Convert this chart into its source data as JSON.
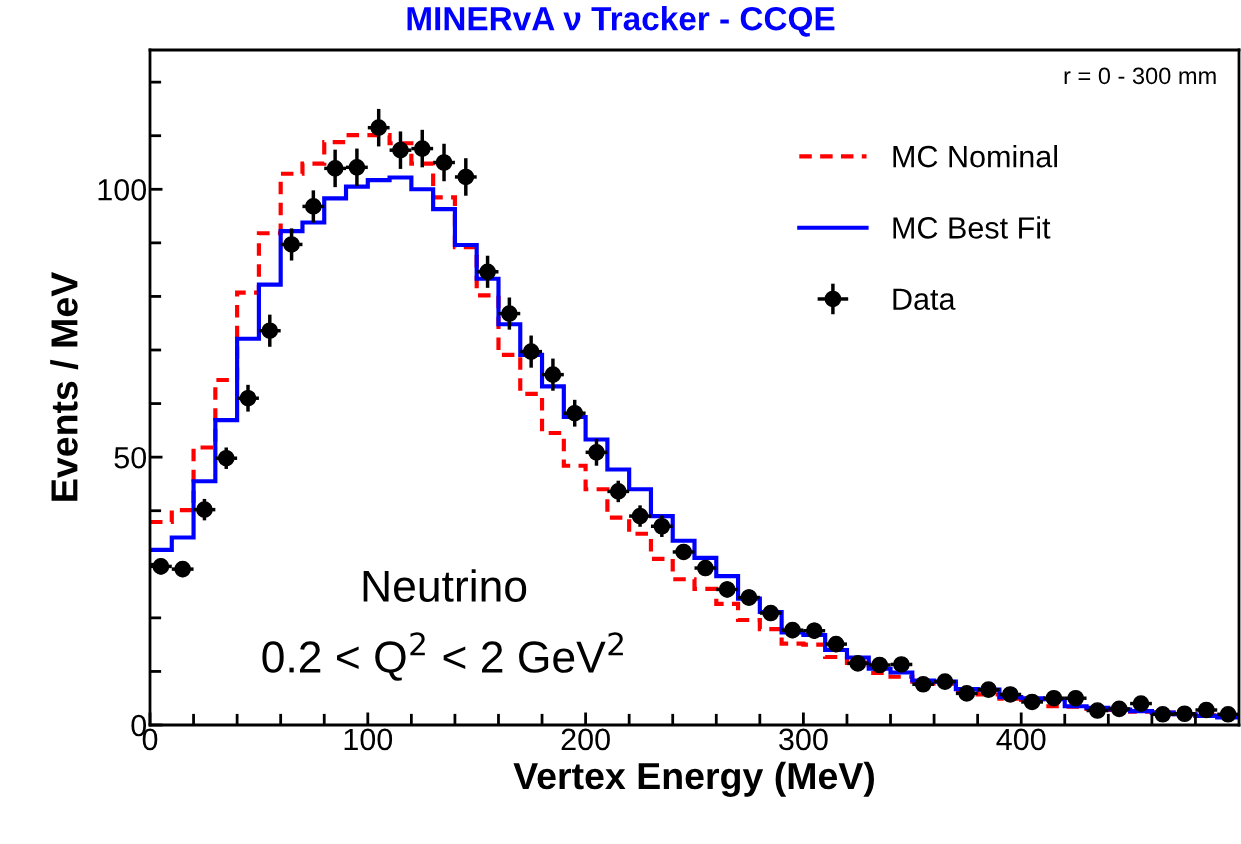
{
  "chart_data": {
    "type": "histogram",
    "title": "MINERvA ν Tracker - CCQE",
    "xlabel": "Vertex Energy (MeV)",
    "ylabel": "Events / MeV",
    "annotations": [
      "r = 0 - 300 mm",
      "Neutrino",
      "0.2 < Q$^{2}$ < 2 GeV$^{2}$"
    ],
    "bins": [
      0,
      10,
      20,
      30,
      40,
      50,
      60,
      70,
      80,
      90,
      100,
      110,
      120,
      130,
      140,
      150,
      160,
      170,
      180,
      190,
      200,
      210,
      220,
      230,
      240,
      250,
      260,
      270,
      280,
      290,
      300,
      310,
      320,
      330,
      340,
      350,
      360,
      370,
      380,
      390,
      400,
      410,
      420,
      430,
      440,
      450,
      460,
      470,
      480,
      490,
      500
    ],
    "series": [
      {
        "name": "MC Nominal",
        "color": "#ff0000",
        "line_style": "dashed",
        "values": [
          37.9,
          40.1,
          51.8,
          64.4,
          80.7,
          91.8,
          102.9,
          104.8,
          108.8,
          110.1,
          110.1,
          108.6,
          104.8,
          98.5,
          89.2,
          80.2,
          69.1,
          61.8,
          54.5,
          48.4,
          44.0,
          38.7,
          35.7,
          31.0,
          27.2,
          25.4,
          22.6,
          19.6,
          17.9,
          15.2,
          15.0,
          12.7,
          11.6,
          9.7,
          9.0,
          8.1,
          7.7,
          6.1,
          5.7,
          4.9,
          4.7,
          3.5,
          3.4,
          3.0,
          2.8,
          2.5,
          2.3,
          2.0,
          1.8,
          1.6
        ]
      },
      {
        "name": "MC Best Fit",
        "color": "#0000ff",
        "line_style": "solid",
        "values": [
          32.7,
          35.0,
          45.5,
          56.9,
          72.1,
          82.2,
          92.2,
          93.8,
          98.3,
          100.5,
          101.7,
          102.2,
          100.0,
          96.3,
          89.6,
          83.3,
          74.8,
          69.1,
          63.2,
          57.5,
          53.3,
          47.7,
          44.0,
          39.0,
          34.4,
          31.2,
          27.8,
          23.6,
          21.1,
          17.3,
          16.8,
          14.0,
          12.6,
          10.5,
          9.8,
          8.3,
          8.1,
          6.7,
          6.6,
          5.2,
          5.0,
          4.8,
          3.5,
          3.2,
          2.9,
          2.6,
          2.3,
          2.0,
          1.7,
          1.4
        ]
      },
      {
        "name": "Data",
        "type": "scatter",
        "color": "#000000",
        "marker": "circle",
        "x": [
          5,
          15,
          25,
          35,
          45,
          55,
          65,
          75,
          85,
          95,
          105,
          115,
          125,
          135,
          145,
          155,
          165,
          175,
          185,
          195,
          205,
          215,
          225,
          235,
          245,
          255,
          265,
          275,
          285,
          295,
          305,
          315,
          325,
          335,
          345,
          355,
          365,
          375,
          385,
          395,
          405,
          415,
          425,
          435,
          445,
          455,
          465,
          475,
          485,
          495
        ],
        "values": [
          29.6,
          29.1,
          40.2,
          49.8,
          61.0,
          73.6,
          89.7,
          96.8,
          103.9,
          104.1,
          111.5,
          107.3,
          107.6,
          105.0,
          102.3,
          84.6,
          76.8,
          69.7,
          65.4,
          58.2,
          50.9,
          43.6,
          39.0,
          37.1,
          32.3,
          29.3,
          25.3,
          23.8,
          20.9,
          17.7,
          17.6,
          15.1,
          11.5,
          11.2,
          11.3,
          7.6,
          8.1,
          5.9,
          6.6,
          5.7,
          4.3,
          5.0,
          5.0,
          2.7,
          3.0,
          4.0,
          2.0,
          2.1,
          2.8,
          2.0
        ],
        "errors": [
          1.5,
          1.5,
          2,
          2,
          2.5,
          3,
          3,
          3,
          3.5,
          3.5,
          3.5,
          3.5,
          3.5,
          3.5,
          3.5,
          3,
          3,
          3,
          3,
          2.5,
          2.5,
          2,
          2,
          2,
          1.5,
          1.5,
          1.5,
          1.5,
          1.5,
          1.5,
          1.5,
          1.5,
          1,
          1,
          1,
          1,
          1,
          1,
          1,
          1,
          1,
          1,
          1,
          0.5,
          0.5,
          0.5,
          0.5,
          0.5,
          0.5,
          0.5
        ],
        "xerrors": [
          5,
          5,
          5,
          5,
          5,
          5,
          5,
          5,
          5,
          5,
          5,
          5,
          5,
          5,
          5,
          5,
          5,
          5,
          5,
          5,
          5,
          5,
          5,
          5,
          5,
          5,
          5,
          5,
          5,
          5,
          5,
          5,
          5,
          5,
          5,
          5,
          5,
          5,
          5,
          5,
          5,
          5,
          5,
          5,
          5,
          5,
          5,
          5,
          5,
          5
        ]
      }
    ],
    "xlim": [
      0,
      500
    ],
    "ylim": [
      0,
      126
    ],
    "xticks": [
      0,
      {
        "value": 20,
        "label": null
      },
      {
        "value": 40,
        "label": null
      },
      {
        "value": 60,
        "label": null
      },
      {
        "value": 80,
        "label": null
      },
      100,
      {
        "value": 120,
        "label": null
      },
      {
        "value": 140,
        "label": null
      },
      {
        "value": 160,
        "label": null
      },
      {
        "value": 180,
        "label": null
      },
      200,
      {
        "value": 220,
        "label": null
      },
      {
        "value": 240,
        "label": null
      },
      {
        "value": 260,
        "label": null
      },
      {
        "value": 280,
        "label": null
      },
      300,
      {
        "value": 320,
        "label": null
      },
      {
        "value": 340,
        "label": null
      },
      {
        "value": 360,
        "label": null
      },
      {
        "value": 380,
        "label": null
      },
      400,
      {
        "value": 420,
        "label": null
      },
      {
        "value": 440,
        "label": null
      },
      {
        "value": 460,
        "label": null
      },
      {
        "value": 480,
        "label": null
      }
    ],
    "yticks": [
      0,
      {
        "value": 10,
        "label": null
      },
      {
        "value": 20,
        "label": null
      },
      {
        "value": 30,
        "label": null
      },
      {
        "value": 40,
        "label": null
      },
      50,
      {
        "value": 60,
        "label": null
      },
      {
        "value": 70,
        "label": null
      },
      {
        "value": 80,
        "label": null
      },
      {
        "value": 90,
        "label": null
      },
      100,
      {
        "value": 110,
        "label": null
      },
      {
        "value": 120,
        "label": null
      }
    ],
    "grid": false,
    "legend": "top right"
  }
}
